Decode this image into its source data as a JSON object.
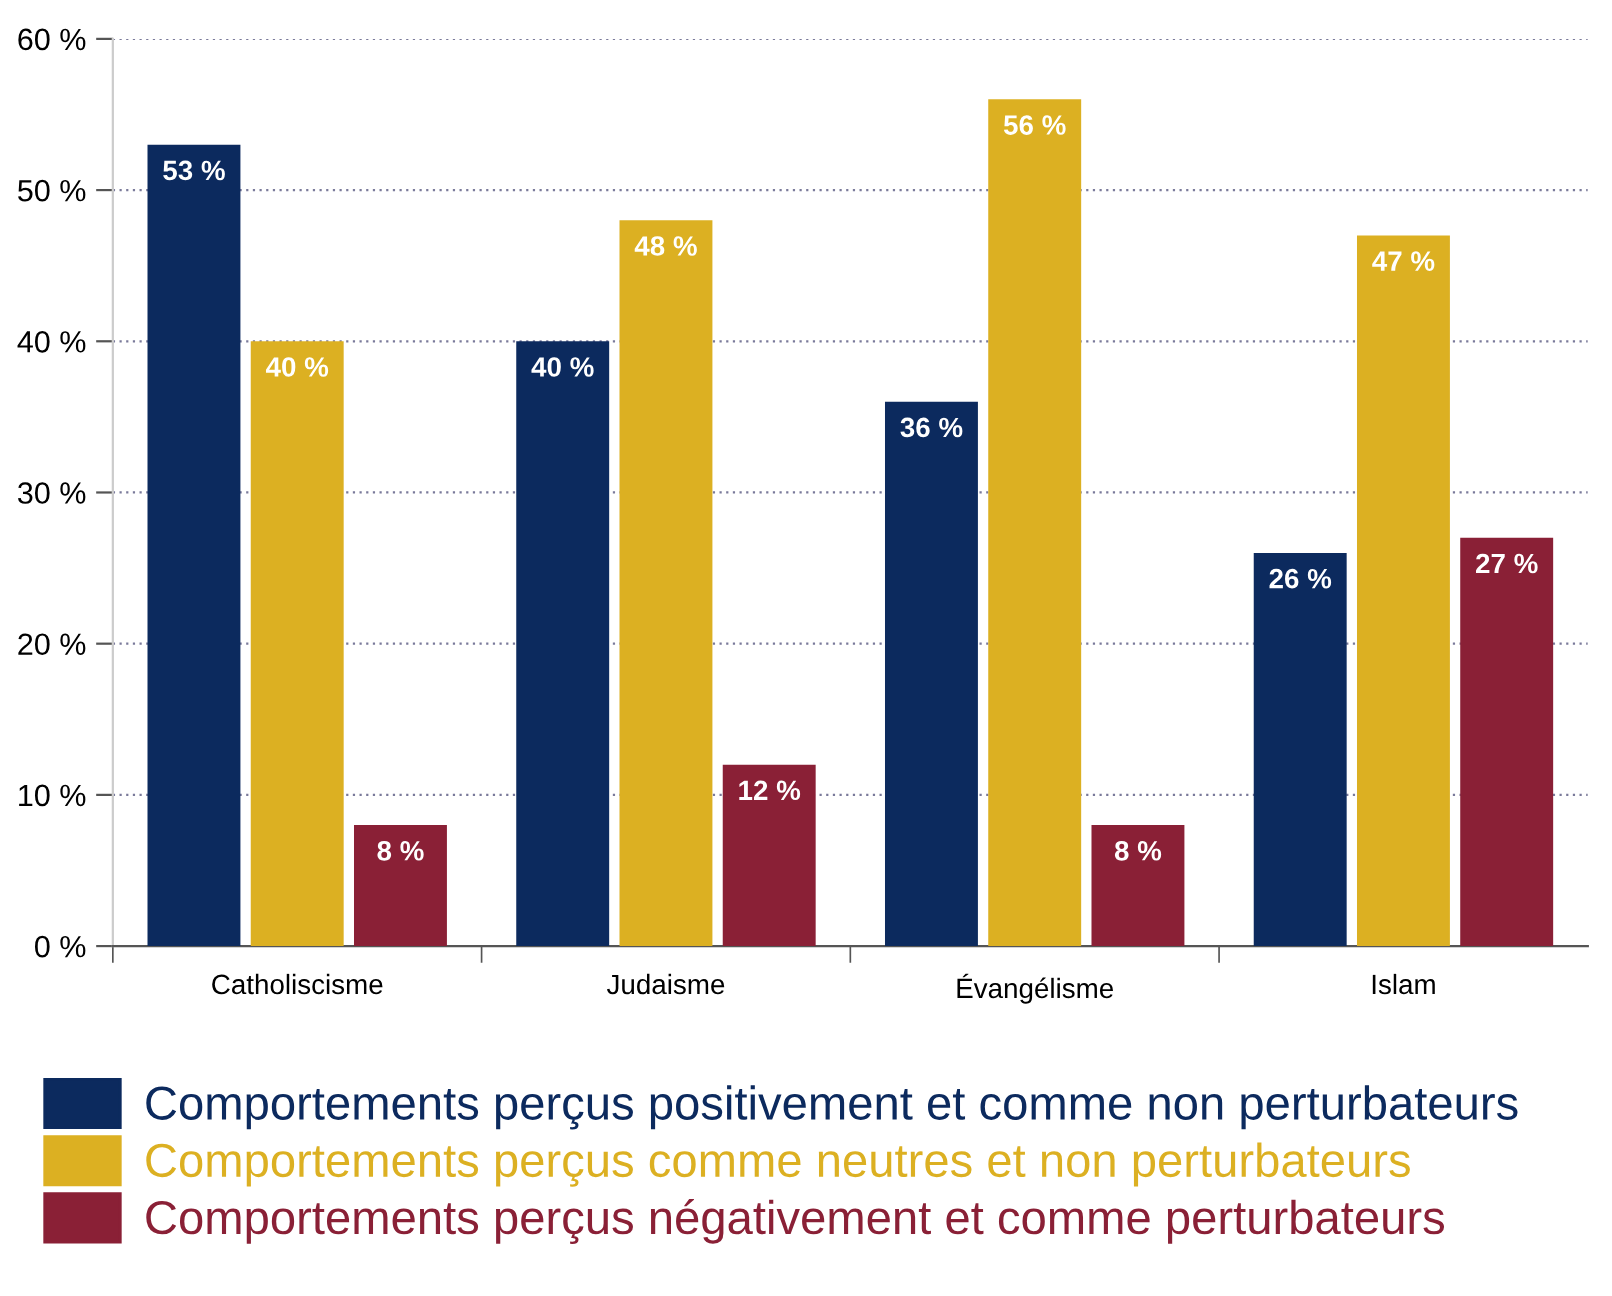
{
  "chart_data": {
    "type": "bar",
    "categories": [
      "Catholiscisme",
      "Judaisme",
      "Évangélisme",
      "Islam"
    ],
    "series": [
      {
        "name": "Comportements perçus positivement et comme non perturbateurs",
        "color": "#0c2a5e",
        "values": [
          53,
          40,
          36,
          26
        ],
        "value_labels": [
          "53 %",
          "40 %",
          "36 %",
          "26 %"
        ]
      },
      {
        "name": "Comportements perçus comme neutres et non perturbateurs",
        "color": "#dcb022",
        "values": [
          40,
          48,
          56,
          47
        ],
        "value_labels": [
          "40 %",
          "48 %",
          "56 %",
          "47 %"
        ]
      },
      {
        "name": "Comportements perçus négativement et comme perturbateurs",
        "color": "#8a2036",
        "values": [
          8,
          12,
          8,
          27
        ],
        "value_labels": [
          "8 %",
          "12 %",
          "8 %",
          "27 %"
        ]
      }
    ],
    "ylim": [
      0,
      60
    ],
    "yticks": [
      {
        "value": 0,
        "label": "0 %"
      },
      {
        "value": 10,
        "label": "10 %"
      },
      {
        "value": 20,
        "label": "20 %"
      },
      {
        "value": 30,
        "label": "30 %"
      },
      {
        "value": 40,
        "label": "40 %"
      },
      {
        "value": 50,
        "label": "50 %"
      },
      {
        "value": 60,
        "label": "60 %"
      }
    ],
    "grid": "y",
    "legend": "bottom"
  }
}
